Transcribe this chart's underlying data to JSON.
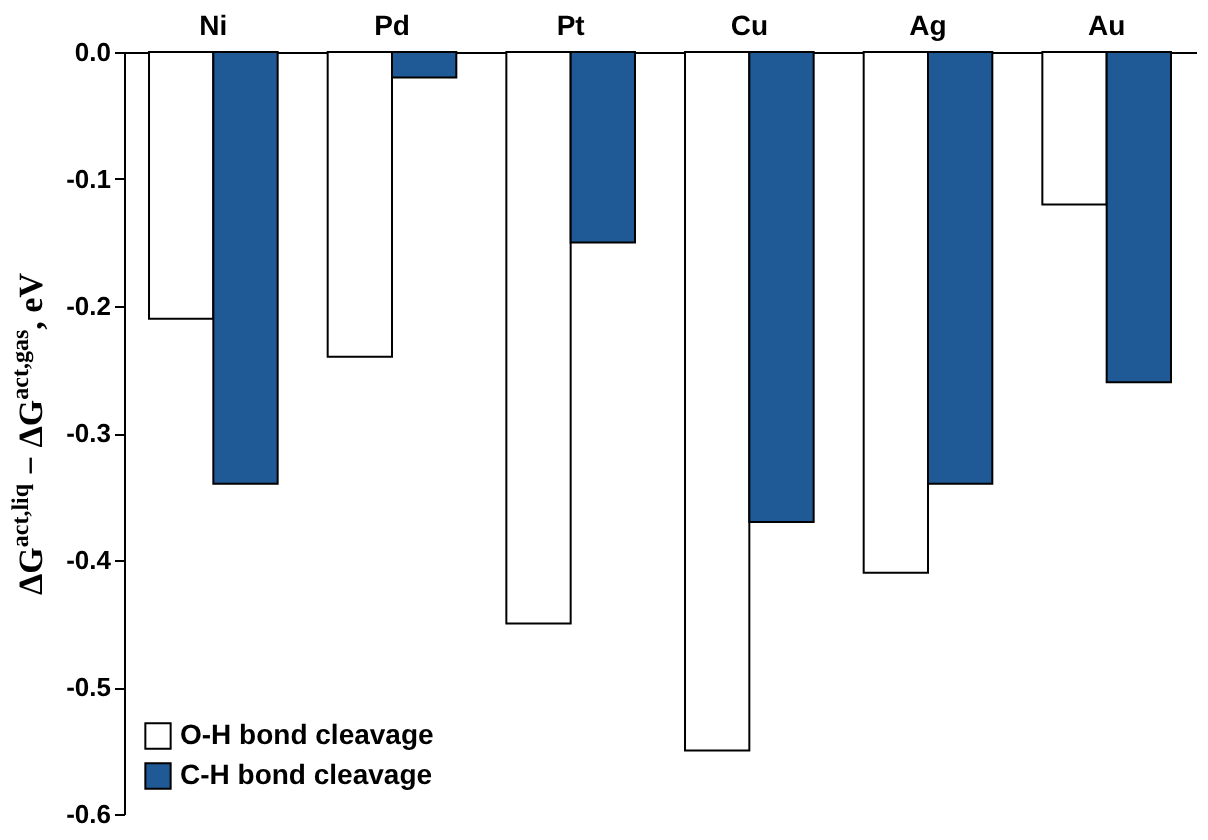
{
  "chart_data": {
    "type": "bar",
    "categories": [
      "Ni",
      "Pd",
      "Pt",
      "Cu",
      "Ag",
      "Au"
    ],
    "ylabel": "ΔG$^{act,liq}$ − ΔG$^{act,gas}$, eV",
    "series": [
      {
        "name": "O-H bond cleavage",
        "color": "#ffffff",
        "values": [
          -0.21,
          -0.24,
          -0.45,
          -0.55,
          -0.41,
          -0.12
        ]
      },
      {
        "name": "C-H bond cleavage",
        "color": "#1f5a96",
        "values": [
          -0.34,
          -0.02,
          -0.15,
          -0.37,
          -0.34,
          -0.26
        ]
      }
    ],
    "ylim": [
      -0.6,
      0
    ],
    "yticks": [
      {
        "value": -0.6,
        "label": "-0.6"
      },
      {
        "value": -0.5,
        "label": "-0.5"
      },
      {
        "value": -0.4,
        "label": "-0.4"
      },
      {
        "value": -0.3,
        "label": "-0.3"
      },
      {
        "value": -0.2,
        "label": "-0.2"
      },
      {
        "value": -0.1,
        "label": "-0.1"
      },
      {
        "value": 0,
        "label": "0.0"
      }
    ],
    "grid": false,
    "legend": "bottom left"
  }
}
